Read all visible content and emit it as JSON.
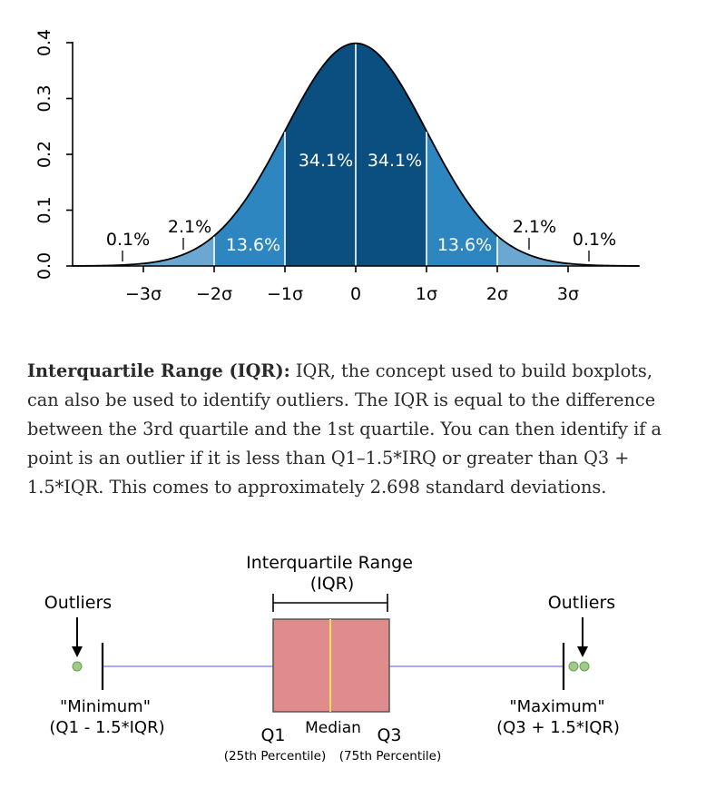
{
  "normal_chart": {
    "chart_data": {
      "type": "area",
      "title": "",
      "xlabel": "",
      "ylabel": "",
      "x_tick_labels": [
        "−3σ",
        "−2σ",
        "−1σ",
        "0",
        "1σ",
        "2σ",
        "3σ"
      ],
      "x_ticks": [
        -3,
        -2,
        -1,
        0,
        1,
        2,
        3
      ],
      "y_tick_labels": [
        "0.0",
        "0.1",
        "0.2",
        "0.3",
        "0.4"
      ],
      "y_ticks": [
        0,
        0.1,
        0.2,
        0.3,
        0.4
      ],
      "xlim": [
        -4,
        4
      ],
      "ylim": [
        0,
        0.4
      ],
      "grid": false,
      "regions": [
        {
          "from": -4,
          "to": -3,
          "label": "0.1%",
          "color": "#b7d2e4"
        },
        {
          "from": -3,
          "to": -2,
          "label": "2.1%",
          "color": "#6aa8d2"
        },
        {
          "from": -2,
          "to": -1,
          "label": "13.6%",
          "color": "#2e86c1"
        },
        {
          "from": -1,
          "to": 0,
          "label": "34.1%",
          "color": "#0b4f80"
        },
        {
          "from": 0,
          "to": 1,
          "label": "34.1%",
          "color": "#0b4f80"
        },
        {
          "from": 1,
          "to": 2,
          "label": "13.6%",
          "color": "#2e86c1"
        },
        {
          "from": 2,
          "to": 3,
          "label": "2.1%",
          "color": "#6aa8d2"
        },
        {
          "from": 3,
          "to": 4,
          "label": "0.1%",
          "color": "#b7d2e4"
        }
      ]
    }
  },
  "paragraph": {
    "term": "Interquartile Range (IQR):",
    "body": " IQR, the concept used to build boxplots, can also be used to identify outliers. The IQR is equal to the difference between the 3rd quartile and the 1st quartile. You can then identify if a point is an outlier if it is less than Q1–1.5*IRQ or greater than Q3 + 1.5*IQR. This comes to approximately 2.698 standard deviations."
  },
  "boxplot": {
    "iqr_title_line1": "Interquartile Range",
    "iqr_title_line2": "(IQR)",
    "outliers_left": "Outliers",
    "outliers_right": "Outliers",
    "minimum_label": "\"Minimum\"",
    "minimum_formula": "(Q1 - 1.5*IQR)",
    "maximum_label": "\"Maximum\"",
    "maximum_formula": "(Q3 + 1.5*IQR)",
    "q1": "Q1",
    "median": "Median",
    "q3": "Q3",
    "q1_note": "(25th Percentile)",
    "q3_note": "(75th Percentile)",
    "colors": {
      "box": "#e08c8c",
      "median_line": "#f5e05a",
      "whisker": "#a9a9f5",
      "outlier_point": "#9ccc86"
    }
  }
}
